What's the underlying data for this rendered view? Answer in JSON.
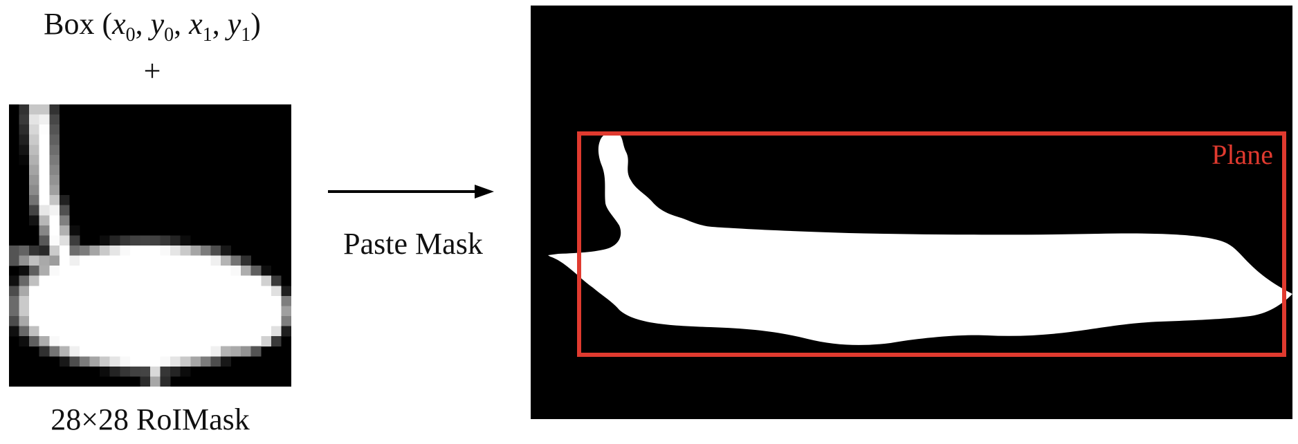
{
  "box_label": {
    "prefix": "Box",
    "open": "(",
    "coords": [
      {
        "var": "x",
        "sub": "0"
      },
      {
        "var": "y",
        "sub": "0"
      },
      {
        "var": "x",
        "sub": "1"
      },
      {
        "var": "y",
        "sub": "1"
      }
    ],
    "separator": ", ",
    "close": ")"
  },
  "plus_symbol": "+",
  "roi_mask": {
    "caption": "28×28 RoIMask",
    "grid_size": 28
  },
  "arrow_label": "Paste Mask",
  "pasted_mask": {
    "box_label": "Plane",
    "box_color": "#e03a2f"
  }
}
